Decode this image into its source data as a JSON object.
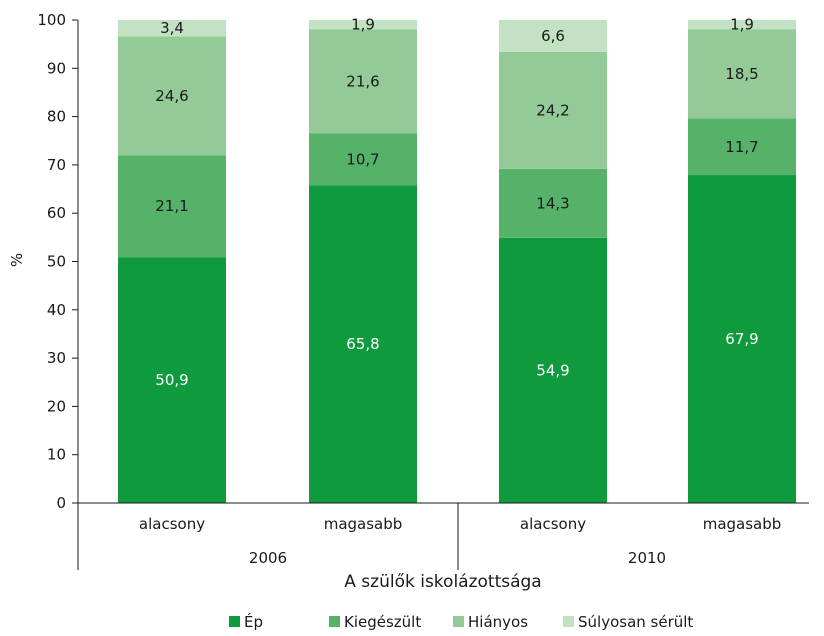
{
  "chart_data": {
    "type": "bar",
    "stacked": true,
    "ylabel": "%",
    "xlabel": "A szülők iskolázottsága",
    "ylim": [
      0,
      100
    ],
    "yticks": [
      0,
      10,
      20,
      30,
      40,
      50,
      60,
      70,
      80,
      90,
      100
    ],
    "categories": [
      "alacsony",
      "magasabb",
      "alacsony",
      "magasabb"
    ],
    "groups": [
      {
        "label": "2006",
        "categories": [
          0,
          1
        ]
      },
      {
        "label": "2010",
        "categories": [
          2,
          3
        ]
      }
    ],
    "series": [
      {
        "name": "Ép",
        "color": "#0f9a3e",
        "values": [
          50.9,
          65.8,
          54.9,
          67.9
        ],
        "labels": [
          "50,9",
          "65,8",
          "54,9",
          "67,9"
        ],
        "label_color": "#ffffff"
      },
      {
        "name": "Kiegészült",
        "color": "#55b268",
        "values": [
          21.1,
          10.7,
          14.3,
          11.7
        ],
        "labels": [
          "21,1",
          "10,7",
          "14,3",
          "11,7"
        ],
        "label_color": "#1a1a1a"
      },
      {
        "name": "Hiányos",
        "color": "#93ca98",
        "values": [
          24.6,
          21.6,
          24.2,
          18.5
        ],
        "labels": [
          "24,6",
          "21,6",
          "24,2",
          "18,5"
        ],
        "label_color": "#1a1a1a"
      },
      {
        "name": "Súlyosan sérült",
        "color": "#c3e2c3",
        "values": [
          3.4,
          1.9,
          6.6,
          1.9
        ],
        "labels": [
          "3,4",
          "1,9",
          "6,6",
          "1,9"
        ],
        "label_color": "#1a1a1a"
      }
    ],
    "grid": false,
    "legend_position": "bottom"
  }
}
